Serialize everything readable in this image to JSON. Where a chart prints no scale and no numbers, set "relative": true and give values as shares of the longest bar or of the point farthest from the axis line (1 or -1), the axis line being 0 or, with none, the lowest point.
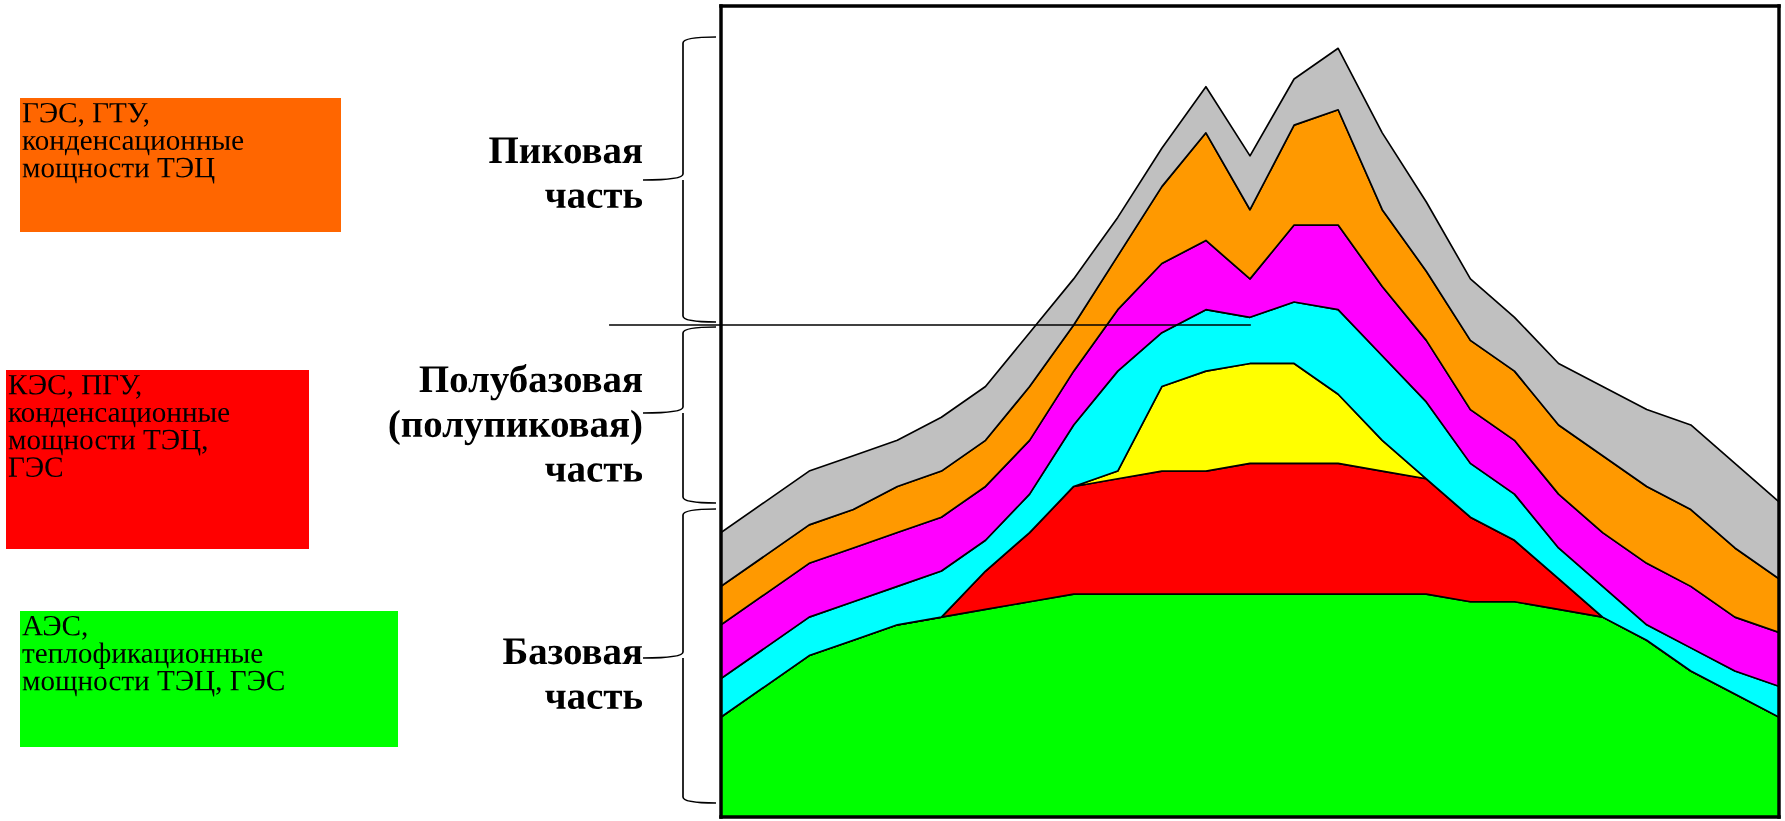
{
  "chart_data": {
    "type": "area",
    "stacked": true,
    "relative": true,
    "categories": [
      null,
      null,
      null,
      null,
      null,
      null,
      null,
      null,
      null,
      null,
      null,
      null,
      null,
      null,
      null,
      null,
      null,
      null,
      null,
      null,
      null,
      null,
      null,
      null,
      null
    ],
    "series": [
      {
        "color": "#00ff00",
        "values": [
          0.13,
          0.17,
          0.21,
          0.23,
          0.25,
          0.26,
          0.27,
          0.28,
          0.29,
          0.29,
          0.29,
          0.29,
          0.29,
          0.29,
          0.29,
          0.29,
          0.29,
          0.28,
          0.28,
          0.27,
          0.26,
          0.23,
          0.19,
          0.16,
          0.13
        ]
      },
      {
        "color": "#ff0000",
        "values": [
          0,
          0,
          0,
          0,
          0,
          0,
          0.05,
          0.09,
          0.14,
          0.15,
          0.16,
          0.16,
          0.17,
          0.17,
          0.17,
          0.16,
          0.15,
          0.11,
          0.08,
          0.04,
          0,
          0,
          0,
          0,
          0
        ]
      },
      {
        "color": "#ffff00",
        "values": [
          0,
          0,
          0,
          0,
          0,
          0,
          0,
          0,
          0,
          0.01,
          0.11,
          0.13,
          0.13,
          0.13,
          0.09,
          0.04,
          0,
          0,
          0,
          0,
          0,
          0,
          0,
          0,
          0
        ]
      },
      {
        "color": "#00ffff",
        "values": [
          0.05,
          0.05,
          0.05,
          0.05,
          0.05,
          0.06,
          0.04,
          0.05,
          0.08,
          0.13,
          0.07,
          0.08,
          0.06,
          0.08,
          0.11,
          0.11,
          0.1,
          0.07,
          0.06,
          0.04,
          0.04,
          0.02,
          0.03,
          0.03,
          0.04
        ]
      },
      {
        "color": "#ff00ff",
        "values": [
          0.07,
          0.07,
          0.07,
          0.07,
          0.07,
          0.07,
          0.07,
          0.07,
          0.07,
          0.08,
          0.09,
          0.09,
          0.05,
          0.1,
          0.11,
          0.09,
          0.08,
          0.07,
          0.07,
          0.07,
          0.07,
          0.08,
          0.08,
          0.07,
          0.07
        ]
      },
      {
        "color": "#ff9900",
        "values": [
          0.05,
          0.05,
          0.05,
          0.05,
          0.06,
          0.06,
          0.06,
          0.07,
          0.06,
          0.07,
          0.1,
          0.14,
          0.09,
          0.13,
          0.15,
          0.1,
          0.09,
          0.09,
          0.09,
          0.09,
          0.1,
          0.1,
          0.1,
          0.09,
          0.07
        ]
      },
      {
        "color": "#c0c0c0",
        "values": [
          0.07,
          0.07,
          0.07,
          0.07,
          0.06,
          0.07,
          0.07,
          0.07,
          0.06,
          0.05,
          0.05,
          0.06,
          0.07,
          0.06,
          0.08,
          0.1,
          0.09,
          0.08,
          0.07,
          0.08,
          0.09,
          0.1,
          0.11,
          0.11,
          0.1
        ]
      }
    ],
    "ref_lines": [
      {
        "axis": "y",
        "value": 0.64,
        "color": "#000000"
      }
    ],
    "annotations": [
      "ГЭС, ГТУ,\nконденсационные\nмощности ТЭЦ",
      "КЭС, ПГУ,\nконденсационные\nмощности ТЭЦ,\nГЭС",
      "АЭС,\nтеплофикационные\nмощности ТЭЦ, ГЭС",
      "Пиковая\nчасть",
      "Полубазовая\n(полупиковая)\nчасть",
      "Базовая\nчасть"
    ],
    "grid": false,
    "legend": false
  }
}
